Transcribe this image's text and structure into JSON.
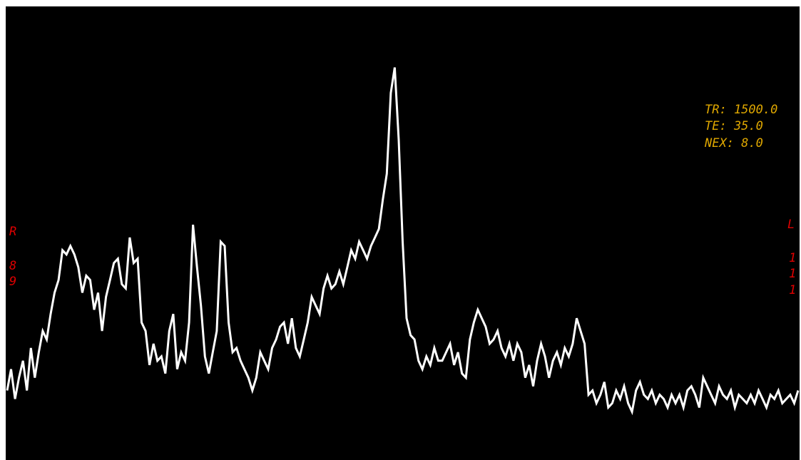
{
  "colors": {
    "background": "#000000",
    "trace": "#ffffff",
    "params": "#e0a800",
    "orientation": "#e00000"
  },
  "params": {
    "tr": "TR: 1500.0",
    "te": "TE: 35.0",
    "nex": "NEX: 8.0"
  },
  "orientation": {
    "left_letter": "R",
    "left_digits": [
      "8",
      "9"
    ],
    "right_letter": "L",
    "right_digits": [
      "1",
      "1",
      "1"
    ]
  },
  "chart_data": {
    "type": "line",
    "title": "",
    "xlabel": "",
    "ylabel": "",
    "x_unit": "sample index",
    "xlim": [
      0,
      1000
    ],
    "ylim": [
      0,
      100
    ],
    "grid": false,
    "legend": "none",
    "series": [
      {
        "name": "",
        "x": [
          0,
          5,
          10,
          15,
          20,
          25,
          30,
          35,
          40,
          45,
          50,
          55,
          60,
          65,
          70,
          75,
          80,
          85,
          90,
          95,
          100,
          105,
          110,
          115,
          120,
          125,
          130,
          135,
          140,
          145,
          150,
          155,
          160,
          165,
          170,
          175,
          180,
          185,
          190,
          195,
          200,
          205,
          210,
          215,
          220,
          225,
          230,
          235,
          240,
          245,
          250,
          255,
          260,
          265,
          270,
          275,
          280,
          285,
          290,
          295,
          300,
          305,
          310,
          315,
          320,
          325,
          330,
          335,
          340,
          345,
          350,
          355,
          360,
          365,
          370,
          375,
          380,
          385,
          390,
          395,
          400,
          405,
          410,
          415,
          420,
          425,
          430,
          435,
          440,
          445,
          450,
          455,
          460,
          465,
          470,
          475,
          480,
          485,
          490,
          495,
          500,
          505,
          510,
          515,
          520,
          525,
          530,
          535,
          540,
          545,
          550,
          555,
          560,
          565,
          570,
          575,
          580,
          585,
          590,
          595,
          600,
          605,
          610,
          615,
          620,
          625,
          630,
          635,
          640,
          645,
          650,
          655,
          660,
          665,
          670,
          675,
          680,
          685,
          690,
          695,
          700,
          705,
          710,
          715,
          720,
          725,
          730,
          735,
          740,
          745,
          750,
          755,
          760,
          765,
          770,
          775,
          780,
          785,
          790,
          795,
          800,
          805,
          810,
          815,
          820,
          825,
          830,
          835,
          840,
          845,
          850,
          855,
          860,
          865,
          870,
          875,
          880,
          885,
          890,
          895,
          900,
          905,
          910,
          915,
          920,
          925,
          930,
          935,
          940,
          945,
          950,
          955,
          960,
          965,
          970,
          975,
          980,
          985,
          990,
          995,
          1000
        ],
        "values": [
          13,
          18,
          11,
          16,
          20,
          13,
          23,
          16,
          22,
          27,
          25,
          31,
          36,
          39,
          46,
          45,
          47,
          45,
          42,
          36,
          40,
          39,
          32,
          36,
          27,
          35,
          39,
          43,
          44,
          38,
          37,
          49,
          43,
          44,
          29,
          27,
          19,
          24,
          20,
          21,
          17,
          27,
          31,
          18,
          22,
          20,
          29,
          52,
          42,
          33,
          21,
          17,
          22,
          27,
          48,
          47,
          29,
          22,
          23,
          20,
          18,
          16,
          13,
          16,
          22,
          20,
          18,
          23,
          25,
          28,
          29,
          24,
          30,
          23,
          21,
          25,
          29,
          35,
          33,
          31,
          37,
          40,
          37,
          38,
          41,
          38,
          42,
          46,
          44,
          48,
          46,
          44,
          47,
          49,
          51,
          58,
          64,
          83,
          89,
          72,
          48,
          30,
          26,
          25,
          20,
          18,
          21,
          19,
          23,
          20,
          20,
          22,
          24,
          19,
          22,
          17,
          16,
          25,
          29,
          32,
          30,
          28,
          24,
          25,
          27,
          23,
          21,
          24,
          20,
          24,
          22,
          16,
          19,
          14,
          20,
          24,
          21,
          16,
          20,
          22,
          19,
          23,
          21,
          24,
          30,
          27,
          24,
          12,
          13,
          10,
          12,
          15,
          9,
          10,
          13,
          11,
          14,
          10,
          8,
          13,
          15,
          12,
          11,
          13,
          10,
          12,
          11,
          9,
          12,
          10,
          12,
          9,
          13,
          14,
          12,
          9,
          16,
          14,
          12,
          10,
          14,
          12,
          11,
          13,
          9,
          12,
          11,
          10,
          12,
          10,
          13,
          11,
          9,
          12,
          11,
          13,
          10,
          11,
          12,
          10,
          13
        ]
      }
    ]
  }
}
